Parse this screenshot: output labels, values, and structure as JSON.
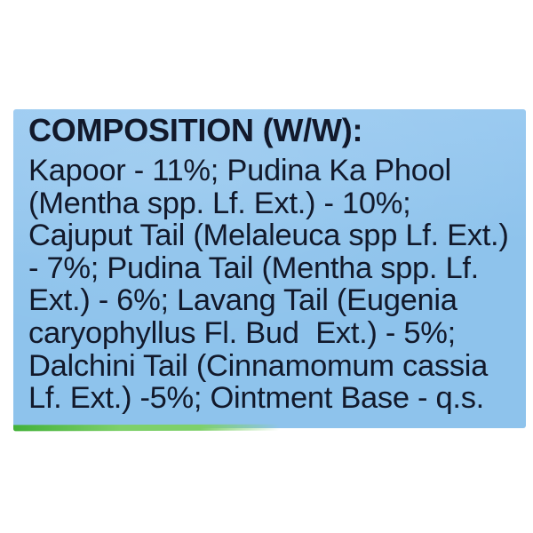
{
  "colors": {
    "page_bg": "#ffffff",
    "label_bg": "#8ec3ec",
    "label_bg_light": "#9ccbf1",
    "text": "#12192b",
    "green_edge": "#43b13a",
    "green_edge_light": "#7ed06a"
  },
  "label": {
    "heading": "COMPOSITION (W/W):",
    "lines": [
      "Kapoor - 11%; Pudina Ka Phool",
      "(Mentha spp. Lf. Ext.) - 10%;",
      "Cajuput Tail (Melaleuca spp Lf. Ext.)",
      "- 7%; Pudina Tail (Mentha spp. Lf.",
      "Ext.) - 6%; Lavang Tail (Eugenia",
      "caryophyllus Fl. Bud  Ext.) - 5%;",
      "Dalchini Tail (Cinnamomum cassia",
      "Lf. Ext.) -5%; Ointment Base - q.s."
    ],
    "ingredients": [
      {
        "name": "Kapoor",
        "amount": "11%"
      },
      {
        "name": "Pudina Ka Phool (Mentha spp. Lf. Ext.)",
        "amount": "10%"
      },
      {
        "name": "Cajuput Tail (Melaleuca spp Lf. Ext.)",
        "amount": "7%"
      },
      {
        "name": "Pudina Tail (Mentha spp. Lf. Ext.)",
        "amount": "6%"
      },
      {
        "name": "Lavang Tail (Eugenia caryophyllus Fl. Bud Ext.)",
        "amount": "5%"
      },
      {
        "name": "Dalchini Tail (Cinnamomum cassia Lf. Ext.)",
        "amount": "5%"
      },
      {
        "name": "Ointment Base",
        "amount": "q.s."
      }
    ]
  }
}
